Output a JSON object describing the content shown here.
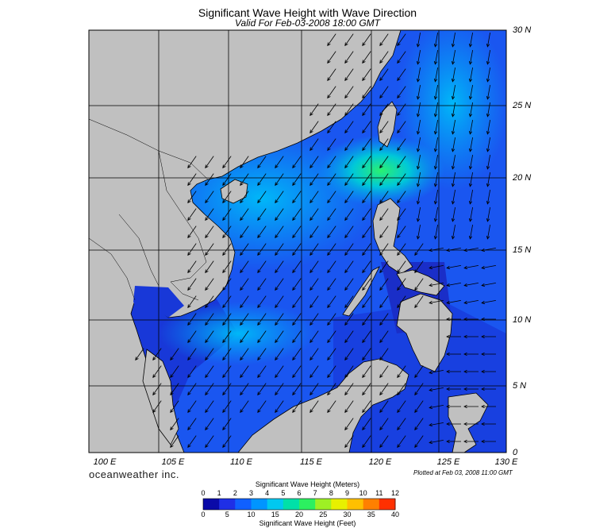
{
  "title": "Significant Wave Height with Wave Direction",
  "subtitle": "Valid For Feb-03-2008 18:00 GMT",
  "lat_labels": [
    "30 N",
    "25 N",
    "20 N",
    "15 N",
    "10 N",
    "5 N",
    "0"
  ],
  "lon_labels": [
    "100 E",
    "105 E",
    "110 E",
    "115 E",
    "120 E",
    "125 E",
    "130 E"
  ],
  "brand": "oceanweather inc.",
  "plotted": "Plotted at Feb 03, 2008 11:00 GMT",
  "legend": {
    "meters_title": "Significant Wave Height (Meters)",
    "feet_title": "Significant Wave Height (Feet)",
    "meters_ticks": [
      "0",
      "1",
      "2",
      "3",
      "4",
      "5",
      "6",
      "7",
      "8",
      "9",
      "10",
      "11",
      "12"
    ],
    "feet_ticks": [
      "0",
      "5",
      "10",
      "15",
      "20",
      "25",
      "30",
      "35",
      "40"
    ],
    "colors": [
      "#0a0aa8",
      "#1f2fe6",
      "#1060ff",
      "#0095ff",
      "#00c8f0",
      "#00e0a8",
      "#2cf060",
      "#9ef024",
      "#e8f000",
      "#ffc000",
      "#ff8000",
      "#ff3000"
    ]
  },
  "colors": {
    "land": "#c0c0c0",
    "deep_sea": "#0a0a9a",
    "low_wave": "#1c3ee0",
    "mid_wave": "#1076ff",
    "high_wave": "#00b4f8",
    "peak_wave": "#18e890",
    "grid": "#000000"
  }
}
